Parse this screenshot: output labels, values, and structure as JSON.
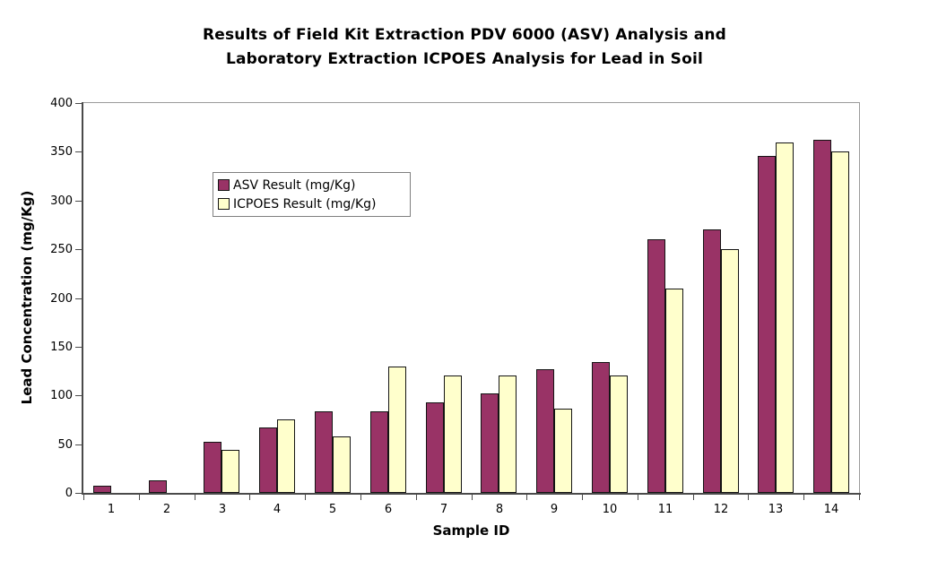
{
  "title": "Results of Field Kit Extraction PDV 6000 (ASV) Analysis and\nLaboratory Extraction ICPOES Analysis for Lead in Soil",
  "chart_data": {
    "type": "bar",
    "categories": [
      "1",
      "2",
      "3",
      "4",
      "5",
      "6",
      "7",
      "8",
      "9",
      "10",
      "11",
      "12",
      "13",
      "14"
    ],
    "series": [
      {
        "name": "ASV Result (mg/Kg)",
        "color": "#993366",
        "values": [
          7,
          13,
          52,
          67,
          84,
          84,
          93,
          102,
          127,
          134,
          260,
          270,
          346,
          362
        ]
      },
      {
        "name": "ICPOES Result (mg/Kg)",
        "color": "#FFFFCC",
        "values": [
          0,
          0,
          44,
          75,
          58,
          130,
          120,
          120,
          86,
          120,
          210,
          250,
          360,
          350
        ]
      }
    ],
    "xlabel": "Sample ID",
    "ylabel": "Lead Concentration (mg/Kg)",
    "ylim": [
      0,
      400
    ],
    "ytick_step": 50,
    "yticks": [
      0,
      50,
      100,
      150,
      200,
      250,
      300,
      350,
      400
    ],
    "grid": false,
    "legend_position": "inside-upper-left",
    "bar_border_color": "#141414",
    "axis_color": "#4a4a4a",
    "plot_border_color": "#9b9b9b",
    "background_color": "#ffffff"
  }
}
